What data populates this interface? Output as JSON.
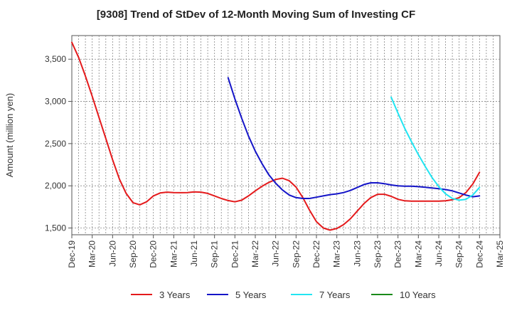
{
  "chart_data": {
    "type": "line",
    "title": "[9308]  Trend of StDev of 12-Month Moving Sum of Investing CF",
    "xlabel": "",
    "ylabel": "Amount (million yen)",
    "ylim": [
      1420,
      3780
    ],
    "yticks": [
      1500,
      2000,
      2500,
      3000,
      3500
    ],
    "ytick_labels": [
      "1,500",
      "2,000",
      "2,500",
      "3,000",
      "3,500"
    ],
    "xticks": [
      "Dec-19",
      "Mar-20",
      "Jun-20",
      "Sep-20",
      "Dec-20",
      "Mar-21",
      "Jun-21",
      "Sep-21",
      "Dec-21",
      "Mar-22",
      "Jun-22",
      "Sep-22",
      "Dec-22",
      "Mar-23",
      "Jun-23",
      "Sep-23",
      "Dec-23",
      "Mar-24",
      "Jun-24",
      "Sep-24",
      "Dec-24",
      "Mar-25"
    ],
    "grid": true,
    "legend_position": "bottom",
    "series": [
      {
        "name": "3 Years",
        "color": "#e41a1c",
        "points": [
          [
            "2019-12",
            3700
          ],
          [
            "2020-01",
            3520
          ],
          [
            "2020-02",
            3300
          ],
          [
            "2020-03",
            3060
          ],
          [
            "2020-04",
            2810
          ],
          [
            "2020-05",
            2560
          ],
          [
            "2020-06",
            2310
          ],
          [
            "2020-07",
            2080
          ],
          [
            "2020-08",
            1910
          ],
          [
            "2020-09",
            1800
          ],
          [
            "2020-10",
            1775
          ],
          [
            "2020-11",
            1810
          ],
          [
            "2020-12",
            1880
          ],
          [
            "2021-01",
            1915
          ],
          [
            "2021-02",
            1925
          ],
          [
            "2021-03",
            1920
          ],
          [
            "2021-04",
            1918
          ],
          [
            "2021-05",
            1920
          ],
          [
            "2021-06",
            1928
          ],
          [
            "2021-07",
            1925
          ],
          [
            "2021-08",
            1910
          ],
          [
            "2021-09",
            1880
          ],
          [
            "2021-10",
            1850
          ],
          [
            "2021-11",
            1825
          ],
          [
            "2021-12",
            1810
          ],
          [
            "2022-01",
            1830
          ],
          [
            "2022-02",
            1880
          ],
          [
            "2022-03",
            1940
          ],
          [
            "2022-04",
            1995
          ],
          [
            "2022-05",
            2040
          ],
          [
            "2022-06",
            2075
          ],
          [
            "2022-07",
            2090
          ],
          [
            "2022-08",
            2060
          ],
          [
            "2022-09",
            1985
          ],
          [
            "2022-10",
            1860
          ],
          [
            "2022-11",
            1710
          ],
          [
            "2022-12",
            1575
          ],
          [
            "2023-01",
            1500
          ],
          [
            "2023-02",
            1475
          ],
          [
            "2023-03",
            1495
          ],
          [
            "2023-04",
            1540
          ],
          [
            "2023-05",
            1610
          ],
          [
            "2023-06",
            1700
          ],
          [
            "2023-07",
            1790
          ],
          [
            "2023-08",
            1860
          ],
          [
            "2023-09",
            1900
          ],
          [
            "2023-10",
            1900
          ],
          [
            "2023-11",
            1875
          ],
          [
            "2023-12",
            1840
          ],
          [
            "2024-01",
            1822
          ],
          [
            "2024-02",
            1818
          ],
          [
            "2024-03",
            1818
          ],
          [
            "2024-04",
            1818
          ],
          [
            "2024-05",
            1818
          ],
          [
            "2024-06",
            1818
          ],
          [
            "2024-07",
            1822
          ],
          [
            "2024-08",
            1835
          ],
          [
            "2024-09",
            1860
          ],
          [
            "2024-10",
            1920
          ],
          [
            "2024-11",
            2020
          ],
          [
            "2024-12",
            2160
          ]
        ]
      },
      {
        "name": "5 Years",
        "color": "#1515c8",
        "points": [
          [
            "2021-11",
            3280
          ],
          [
            "2021-12",
            3030
          ],
          [
            "2022-01",
            2800
          ],
          [
            "2022-02",
            2590
          ],
          [
            "2022-03",
            2410
          ],
          [
            "2022-04",
            2260
          ],
          [
            "2022-05",
            2130
          ],
          [
            "2022-06",
            2030
          ],
          [
            "2022-07",
            1950
          ],
          [
            "2022-08",
            1890
          ],
          [
            "2022-09",
            1860
          ],
          [
            "2022-10",
            1850
          ],
          [
            "2022-11",
            1850
          ],
          [
            "2022-12",
            1865
          ],
          [
            "2023-01",
            1880
          ],
          [
            "2023-02",
            1895
          ],
          [
            "2023-03",
            1905
          ],
          [
            "2023-04",
            1920
          ],
          [
            "2023-05",
            1945
          ],
          [
            "2023-06",
            1980
          ],
          [
            "2023-07",
            2015
          ],
          [
            "2023-08",
            2035
          ],
          [
            "2023-09",
            2035
          ],
          [
            "2023-10",
            2025
          ],
          [
            "2023-11",
            2010
          ],
          [
            "2023-12",
            2000
          ],
          [
            "2024-01",
            1995
          ],
          [
            "2024-02",
            1995
          ],
          [
            "2024-03",
            1990
          ],
          [
            "2024-04",
            1982
          ],
          [
            "2024-05",
            1975
          ],
          [
            "2024-06",
            1965
          ],
          [
            "2024-07",
            1955
          ],
          [
            "2024-08",
            1940
          ],
          [
            "2024-09",
            1915
          ],
          [
            "2024-10",
            1890
          ],
          [
            "2024-11",
            1870
          ],
          [
            "2024-12",
            1880
          ]
        ]
      },
      {
        "name": "7 Years",
        "color": "#22e5f2",
        "points": [
          [
            "2023-11",
            3050
          ],
          [
            "2023-12",
            2860
          ],
          [
            "2024-01",
            2680
          ],
          [
            "2024-02",
            2520
          ],
          [
            "2024-03",
            2370
          ],
          [
            "2024-04",
            2230
          ],
          [
            "2024-05",
            2100
          ],
          [
            "2024-06",
            1990
          ],
          [
            "2024-07",
            1905
          ],
          [
            "2024-08",
            1850
          ],
          [
            "2024-09",
            1830
          ],
          [
            "2024-10",
            1840
          ],
          [
            "2024-11",
            1890
          ],
          [
            "2024-12",
            1980
          ]
        ]
      },
      {
        "name": "10 Years",
        "color": "#1a8a1a",
        "points": []
      }
    ]
  }
}
